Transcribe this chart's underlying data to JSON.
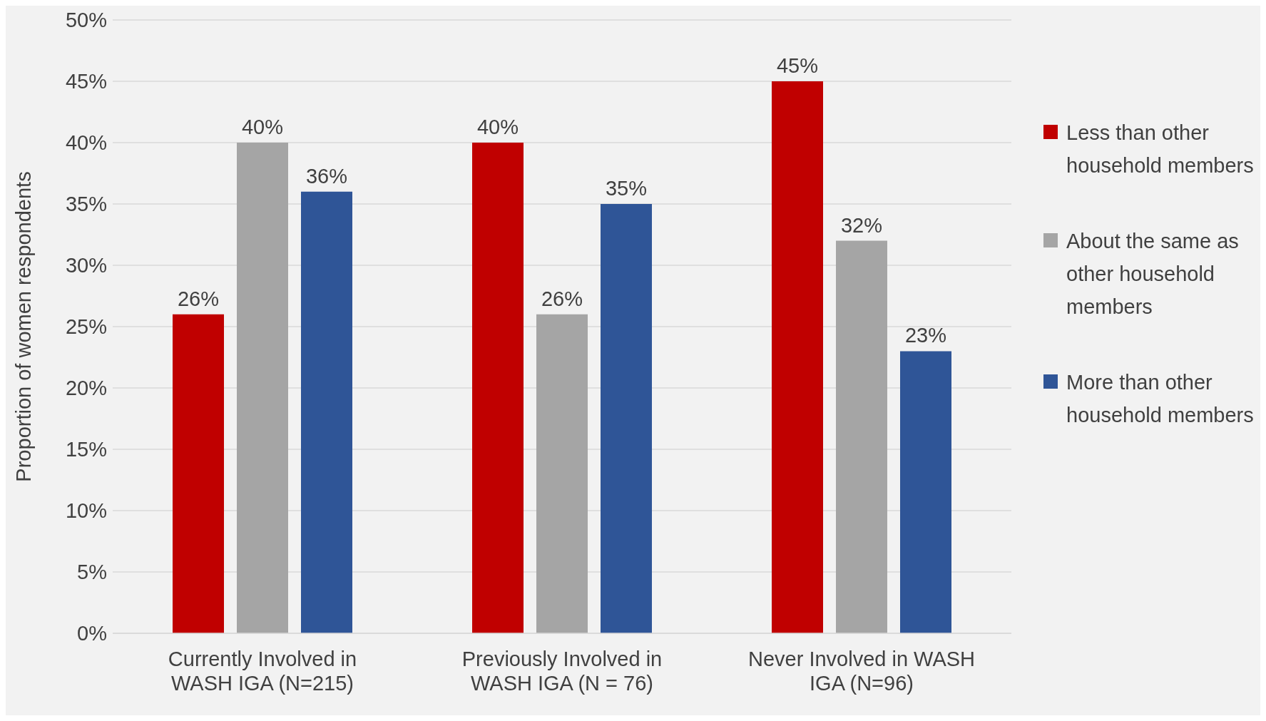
{
  "chart_data": {
    "type": "bar",
    "ylabel": "Proportion of women respondents",
    "categories": [
      "Currently Involved in WASH IGA (N=215)",
      "Previously Involved in WASH IGA (N = 76)",
      "Never Involved in WASH IGA (N=96)"
    ],
    "series": [
      {
        "name": "Less than other household members",
        "color": "#c00000",
        "values": [
          26,
          40,
          45
        ],
        "value_labels": [
          "26%",
          "40%",
          "45%"
        ]
      },
      {
        "name": "About the same as other household members",
        "color": "#a5a5a5",
        "values": [
          40,
          26,
          32
        ],
        "value_labels": [
          "40%",
          "26%",
          "32%"
        ]
      },
      {
        "name": "More than other household members",
        "color": "#2f5597",
        "values": [
          36,
          35,
          23
        ],
        "value_labels": [
          "36%",
          "35%",
          "23%"
        ]
      }
    ],
    "ylim": [
      0,
      50
    ],
    "yticks": [
      {
        "value": 0,
        "label": "0%"
      },
      {
        "value": 5,
        "label": "5%"
      },
      {
        "value": 10,
        "label": "10%"
      },
      {
        "value": 15,
        "label": "15%"
      },
      {
        "value": 20,
        "label": "20%"
      },
      {
        "value": 25,
        "label": "25%"
      },
      {
        "value": 30,
        "label": "30%"
      },
      {
        "value": 35,
        "label": "35%"
      },
      {
        "value": 40,
        "label": "40%"
      },
      {
        "value": 45,
        "label": "45%"
      },
      {
        "value": 50,
        "label": "50%"
      }
    ],
    "grid": "y",
    "legend": "right"
  }
}
